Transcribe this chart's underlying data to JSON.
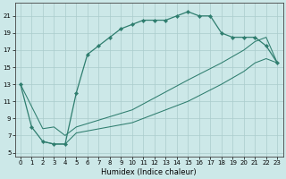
{
  "xlabel": "Humidex (Indice chaleur)",
  "bg_color": "#cce8e8",
  "grid_color": "#aacccc",
  "line_color": "#2e7d6e",
  "xlim": [
    -0.5,
    23.5
  ],
  "ylim": [
    4.5,
    22.5
  ],
  "yticks": [
    5,
    7,
    9,
    11,
    13,
    15,
    17,
    19,
    21
  ],
  "xticks": [
    0,
    1,
    2,
    3,
    4,
    5,
    6,
    7,
    8,
    9,
    10,
    11,
    12,
    13,
    14,
    15,
    16,
    17,
    18,
    19,
    20,
    21,
    22,
    23
  ],
  "line1_x": [
    0,
    1,
    2,
    3,
    4,
    5,
    6,
    7,
    8,
    9,
    10,
    11,
    12,
    13,
    14,
    15,
    16,
    17,
    18,
    19,
    20,
    21,
    22,
    23
  ],
  "line1_y": [
    13,
    8,
    6.3,
    6,
    6,
    12,
    16.5,
    17.5,
    18.5,
    19.5,
    20,
    20.5,
    20.5,
    20.5,
    21,
    21.5,
    21,
    21,
    19,
    18.5,
    18.5,
    18.5,
    17.5,
    15.5
  ],
  "line2_x": [
    0,
    2,
    3,
    4,
    5,
    10,
    15,
    18,
    20,
    21,
    22,
    23
  ],
  "line2_y": [
    13,
    7.8,
    8,
    7,
    8,
    10,
    13.5,
    15.5,
    17,
    18,
    18.5,
    15.5
  ],
  "line3_x": [
    2,
    3,
    4,
    5,
    10,
    15,
    18,
    20,
    21,
    22,
    23
  ],
  "line3_y": [
    6.3,
    6,
    6,
    7.3,
    8.5,
    11,
    13,
    14.5,
    15.5,
    16,
    15.5
  ]
}
